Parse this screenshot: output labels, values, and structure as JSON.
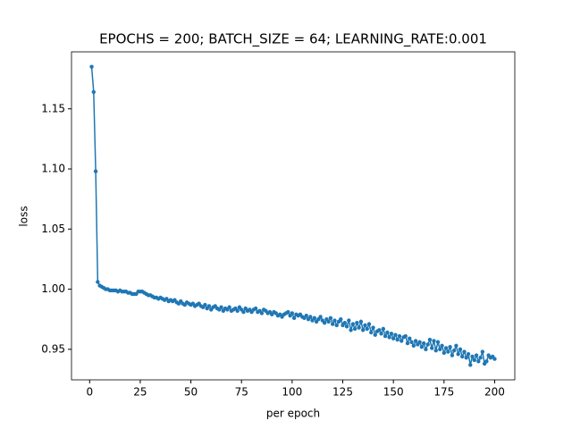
{
  "chart_data": {
    "type": "line",
    "title": "EPOCHS = 200; BATCH_SIZE = 64; LEARNING_RATE:0.001",
    "x_label": "per epoch",
    "y_label": "loss",
    "color": "#1f77b4",
    "markers": true,
    "grid": false,
    "x": [
      1,
      2,
      3,
      4,
      5,
      6,
      7,
      8,
      9,
      10,
      11,
      12,
      13,
      14,
      15,
      16,
      17,
      18,
      19,
      20,
      21,
      22,
      23,
      24,
      25,
      26,
      27,
      28,
      29,
      30,
      31,
      32,
      33,
      34,
      35,
      36,
      37,
      38,
      39,
      40,
      41,
      42,
      43,
      44,
      45,
      46,
      47,
      48,
      49,
      50,
      51,
      52,
      53,
      54,
      55,
      56,
      57,
      58,
      59,
      60,
      61,
      62,
      63,
      64,
      65,
      66,
      67,
      68,
      69,
      70,
      71,
      72,
      73,
      74,
      75,
      76,
      77,
      78,
      79,
      80,
      81,
      82,
      83,
      84,
      85,
      86,
      87,
      88,
      89,
      90,
      91,
      92,
      93,
      94,
      95,
      96,
      97,
      98,
      99,
      100,
      101,
      102,
      103,
      104,
      105,
      106,
      107,
      108,
      109,
      110,
      111,
      112,
      113,
      114,
      115,
      116,
      117,
      118,
      119,
      120,
      121,
      122,
      123,
      124,
      125,
      126,
      127,
      128,
      129,
      130,
      131,
      132,
      133,
      134,
      135,
      136,
      137,
      138,
      139,
      140,
      141,
      142,
      143,
      144,
      145,
      146,
      147,
      148,
      149,
      150,
      151,
      152,
      153,
      154,
      155,
      156,
      157,
      158,
      159,
      160,
      161,
      162,
      163,
      164,
      165,
      166,
      167,
      168,
      169,
      170,
      171,
      172,
      173,
      174,
      175,
      176,
      177,
      178,
      179,
      180,
      181,
      182,
      183,
      184,
      185,
      186,
      187,
      188,
      189,
      190,
      191,
      192,
      193,
      194,
      195,
      196,
      197,
      198,
      199,
      200
    ],
    "values": [
      1.185,
      1.164,
      1.098,
      1.006,
      1.003,
      1.002,
      1.001,
      1.0,
      1.0,
      0.999,
      0.999,
      0.999,
      0.999,
      0.998,
      0.999,
      0.998,
      0.998,
      0.998,
      0.997,
      0.997,
      0.996,
      0.996,
      0.996,
      0.998,
      0.998,
      0.998,
      0.997,
      0.996,
      0.995,
      0.995,
      0.994,
      0.993,
      0.993,
      0.992,
      0.993,
      0.992,
      0.991,
      0.992,
      0.99,
      0.991,
      0.99,
      0.991,
      0.989,
      0.988,
      0.99,
      0.988,
      0.987,
      0.989,
      0.988,
      0.987,
      0.988,
      0.986,
      0.987,
      0.988,
      0.986,
      0.985,
      0.987,
      0.984,
      0.986,
      0.983,
      0.985,
      0.986,
      0.984,
      0.983,
      0.985,
      0.982,
      0.984,
      0.983,
      0.985,
      0.982,
      0.983,
      0.984,
      0.982,
      0.985,
      0.983,
      0.981,
      0.984,
      0.982,
      0.983,
      0.981,
      0.983,
      0.984,
      0.981,
      0.982,
      0.98,
      0.983,
      0.982,
      0.98,
      0.981,
      0.979,
      0.981,
      0.98,
      0.978,
      0.979,
      0.977,
      0.979,
      0.98,
      0.981,
      0.978,
      0.98,
      0.976,
      0.979,
      0.978,
      0.979,
      0.977,
      0.976,
      0.978,
      0.975,
      0.977,
      0.974,
      0.976,
      0.973,
      0.975,
      0.977,
      0.974,
      0.972,
      0.975,
      0.973,
      0.976,
      0.971,
      0.974,
      0.97,
      0.973,
      0.975,
      0.97,
      0.972,
      0.969,
      0.974,
      0.966,
      0.971,
      0.967,
      0.972,
      0.968,
      0.973,
      0.966,
      0.97,
      0.967,
      0.971,
      0.964,
      0.968,
      0.962,
      0.965,
      0.966,
      0.963,
      0.967,
      0.961,
      0.964,
      0.96,
      0.963,
      0.959,
      0.962,
      0.958,
      0.961,
      0.957,
      0.96,
      0.961,
      0.955,
      0.959,
      0.956,
      0.953,
      0.957,
      0.954,
      0.956,
      0.952,
      0.955,
      0.95,
      0.954,
      0.958,
      0.951,
      0.957,
      0.949,
      0.956,
      0.95,
      0.953,
      0.947,
      0.951,
      0.948,
      0.952,
      0.945,
      0.949,
      0.953,
      0.946,
      0.95,
      0.944,
      0.948,
      0.943,
      0.946,
      0.937,
      0.944,
      0.941,
      0.945,
      0.94,
      0.943,
      0.948,
      0.938,
      0.94,
      0.945,
      0.943,
      0.944,
      0.942
    ],
    "xlim": [
      -8.95,
      209.95
    ],
    "xticks": [
      0,
      25,
      50,
      75,
      100,
      125,
      150,
      175,
      200
    ],
    "ylim": [
      0.9246,
      1.1974
    ],
    "yticks": [
      0.95,
      {
        "value": 1.0,
        "label": "1.00"
      },
      1.05,
      {
        "value": 1.1,
        "label": "1.10"
      },
      1.15
    ]
  }
}
